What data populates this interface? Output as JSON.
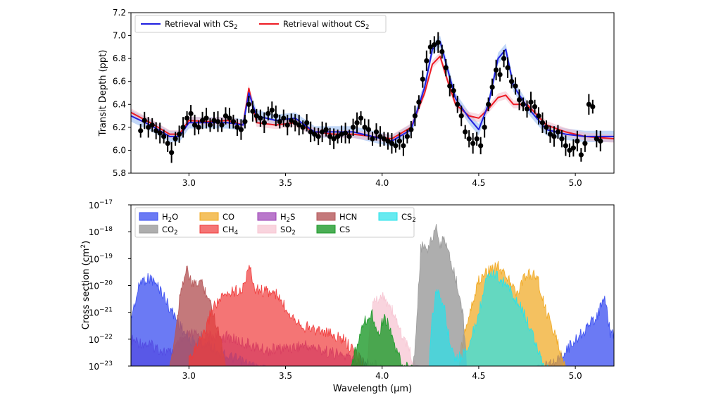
{
  "colors": {
    "with_cs2": "#1f1fe0",
    "without_cs2": "#ee1c24",
    "band_with": "#8fb7f0",
    "band_without": "#f2b8c6",
    "data_points": "#000000",
    "H2O": "#3a4ef0",
    "CO2": "#9a9a9a",
    "H2S": "#9b3fb5",
    "SO2": "#f7c6d3",
    "CO": "#f0a71c",
    "CH4": "#f03a3a",
    "HCN": "#b5585a",
    "CS": "#1e9a2a",
    "CS2": "#27e1ea"
  },
  "chart_data": [
    {
      "type": "line",
      "title": "",
      "xlabel": "",
      "ylabel": "Transit Depth (ppt)",
      "xlim": [
        2.7,
        5.2
      ],
      "ylim": [
        5.8,
        7.2
      ],
      "xticks": [
        "3.0",
        "3.5",
        "4.0",
        "4.5",
        "5.0"
      ],
      "yticks": [
        "5.8",
        "6.0",
        "6.2",
        "6.4",
        "6.6",
        "6.8",
        "7.0",
        "7.2"
      ],
      "legend_position": "top-left",
      "legend": [
        "Retrieval with CS2",
        "Retrieval without CS2"
      ],
      "series": [
        {
          "name": "Retrieval with CS2",
          "x": [
            2.7,
            2.8,
            2.9,
            2.95,
            3.0,
            3.1,
            3.2,
            3.28,
            3.31,
            3.35,
            3.45,
            3.55,
            3.65,
            3.75,
            3.85,
            3.95,
            4.05,
            4.15,
            4.22,
            4.26,
            4.3,
            4.34,
            4.38,
            4.45,
            4.5,
            4.55,
            4.6,
            4.64,
            4.68,
            4.75,
            4.85,
            4.95,
            5.05,
            5.2
          ],
          "y": [
            6.3,
            6.22,
            6.12,
            6.12,
            6.24,
            6.24,
            6.24,
            6.22,
            6.5,
            6.3,
            6.26,
            6.28,
            6.16,
            6.16,
            6.16,
            6.12,
            6.08,
            6.18,
            6.55,
            6.88,
            6.95,
            6.7,
            6.45,
            6.28,
            6.18,
            6.4,
            6.8,
            6.88,
            6.56,
            6.38,
            6.18,
            6.14,
            6.12,
            6.12
          ]
        },
        {
          "name": "Retrieval without CS2",
          "x": [
            2.7,
            2.8,
            2.9,
            2.95,
            3.0,
            3.1,
            3.2,
            3.28,
            3.31,
            3.35,
            3.45,
            3.55,
            3.65,
            3.75,
            3.85,
            3.95,
            4.05,
            4.15,
            4.22,
            4.26,
            4.3,
            4.34,
            4.38,
            4.45,
            4.5,
            4.55,
            4.6,
            4.64,
            4.68,
            4.75,
            4.85,
            4.95,
            5.05,
            5.2
          ],
          "y": [
            6.33,
            6.24,
            6.14,
            6.14,
            6.26,
            6.25,
            6.26,
            6.22,
            6.54,
            6.24,
            6.22,
            6.24,
            6.16,
            6.14,
            6.14,
            6.12,
            6.1,
            6.2,
            6.5,
            6.75,
            6.82,
            6.6,
            6.4,
            6.3,
            6.28,
            6.36,
            6.46,
            6.48,
            6.4,
            6.4,
            6.22,
            6.16,
            6.12,
            6.1
          ]
        }
      ],
      "observed": {
        "x": [
          2.75,
          2.77,
          2.79,
          2.81,
          2.83,
          2.85,
          2.87,
          2.89,
          2.91,
          2.93,
          2.95,
          2.97,
          2.99,
          3.01,
          3.03,
          3.05,
          3.07,
          3.09,
          3.11,
          3.13,
          3.15,
          3.17,
          3.19,
          3.21,
          3.23,
          3.25,
          3.27,
          3.29,
          3.31,
          3.33,
          3.35,
          3.37,
          3.39,
          3.41,
          3.43,
          3.45,
          3.47,
          3.49,
          3.51,
          3.53,
          3.55,
          3.57,
          3.59,
          3.61,
          3.63,
          3.65,
          3.67,
          3.69,
          3.71,
          3.73,
          3.75,
          3.77,
          3.79,
          3.81,
          3.83,
          3.85,
          3.87,
          3.89,
          3.91,
          3.93,
          3.95,
          3.97,
          3.99,
          4.01,
          4.03,
          4.05,
          4.07,
          4.09,
          4.11,
          4.13,
          4.15,
          4.17,
          4.19,
          4.21,
          4.23,
          4.25,
          4.27,
          4.29,
          4.31,
          4.33,
          4.35,
          4.37,
          4.39,
          4.41,
          4.43,
          4.45,
          4.47,
          4.49,
          4.51,
          4.53,
          4.55,
          4.57,
          4.59,
          4.61,
          4.63,
          4.65,
          4.67,
          4.69,
          4.71,
          4.73,
          4.75,
          4.77,
          4.79,
          4.81,
          4.83,
          4.85,
          4.87,
          4.89,
          4.91,
          4.93,
          4.95,
          4.97,
          4.99,
          5.01,
          5.03,
          5.05,
          5.07,
          5.09,
          5.11,
          5.13
        ],
        "y": [
          6.17,
          6.26,
          6.2,
          6.22,
          6.17,
          6.15,
          6.12,
          6.06,
          5.98,
          6.1,
          6.14,
          6.2,
          6.28,
          6.32,
          6.22,
          6.2,
          6.26,
          6.28,
          6.22,
          6.26,
          6.25,
          6.22,
          6.3,
          6.28,
          6.25,
          6.2,
          6.18,
          6.25,
          6.4,
          6.34,
          6.3,
          6.28,
          6.24,
          6.32,
          6.35,
          6.3,
          6.25,
          6.28,
          6.22,
          6.26,
          6.24,
          6.22,
          6.2,
          6.24,
          6.16,
          6.14,
          6.12,
          6.16,
          6.18,
          6.12,
          6.1,
          6.12,
          6.14,
          6.15,
          6.12,
          6.2,
          6.24,
          6.28,
          6.2,
          6.18,
          6.1,
          6.16,
          6.12,
          6.1,
          6.08,
          6.06,
          6.04,
          6.08,
          6.04,
          6.12,
          6.18,
          6.3,
          6.42,
          6.62,
          6.78,
          6.9,
          6.92,
          6.94,
          6.86,
          6.72,
          6.56,
          6.52,
          6.4,
          6.3,
          6.16,
          6.1,
          6.06,
          6.1,
          6.04,
          6.2,
          6.4,
          6.55,
          6.7,
          6.66,
          6.8,
          6.72,
          6.6,
          6.56,
          6.44,
          6.4,
          6.36,
          6.42,
          6.38,
          6.3,
          6.24,
          6.2,
          6.14,
          6.12,
          6.16,
          6.1,
          6.04,
          6.0,
          6.02,
          6.08,
          5.96,
          6.06,
          6.4,
          6.38,
          6.1,
          6.08
        ],
        "error": 0.06
      }
    },
    {
      "type": "area",
      "title": "",
      "xlabel": "Wavelength (µm)",
      "ylabel": "Cross section (cm²)",
      "yscale": "log",
      "xlim": [
        2.7,
        5.2
      ],
      "ylim_exponents": [
        -23,
        -17
      ],
      "xticks": [
        "3.0",
        "3.5",
        "4.0",
        "4.5",
        "5.0"
      ],
      "yticks": [
        {
          "base": "10",
          "exp": "−17"
        },
        {
          "base": "10",
          "exp": "−18"
        },
        {
          "base": "10",
          "exp": "−19"
        },
        {
          "base": "10",
          "exp": "−20"
        },
        {
          "base": "10",
          "exp": "−21"
        },
        {
          "base": "10",
          "exp": "−22"
        },
        {
          "base": "10",
          "exp": "−23"
        }
      ],
      "legend_position": "top-left",
      "legend": [
        {
          "key": "H2O",
          "label": "H",
          "sub": "2",
          "tail": "O"
        },
        {
          "key": "CO2",
          "label": "CO",
          "sub": "2",
          "tail": ""
        },
        {
          "key": "CO",
          "label": "CO",
          "sub": "",
          "tail": ""
        },
        {
          "key": "CH4",
          "label": "CH",
          "sub": "4",
          "tail": ""
        },
        {
          "key": "H2S",
          "label": "H",
          "sub": "2",
          "tail": "S"
        },
        {
          "key": "SO2",
          "label": "SO",
          "sub": "2",
          "tail": ""
        },
        {
          "key": "HCN",
          "label": "HCN",
          "sub": "",
          "tail": ""
        },
        {
          "key": "CS",
          "label": "CS",
          "sub": "",
          "tail": ""
        },
        {
          "key": "CS2",
          "label": "CS",
          "sub": "2",
          "tail": ""
        }
      ],
      "series": [
        {
          "name": "H2O",
          "x": [
            2.7,
            2.75,
            2.8,
            2.85,
            2.9,
            2.95,
            3.0,
            3.1,
            3.2,
            3.4,
            3.6,
            3.8,
            4.0,
            4.5,
            4.8,
            4.9,
            5.0,
            5.08,
            5.12,
            5.15,
            5.18,
            5.2
          ],
          "y": [
            -21.0,
            -19.6,
            -19.5,
            -19.9,
            -20.6,
            -21.2,
            -21.8,
            -22.0,
            -22.4,
            -23.0,
            -23.0,
            -23.0,
            -23.0,
            -23.0,
            -23.0,
            -22.6,
            -21.8,
            -21.2,
            -20.8,
            -20.2,
            -21.5,
            -21.6
          ]
        },
        {
          "name": "CO2",
          "x": [
            4.16,
            4.18,
            4.2,
            4.22,
            4.24,
            4.26,
            4.28,
            4.3,
            4.32,
            4.34,
            4.36,
            4.38,
            4.4,
            4.42,
            4.44
          ],
          "y": [
            -23.0,
            -21.0,
            -18.4,
            -18.2,
            -18.4,
            -18.0,
            -17.7,
            -18.3,
            -18.0,
            -18.6,
            -19.0,
            -19.5,
            -20.2,
            -21.0,
            -23.0
          ]
        },
        {
          "name": "CO",
          "x": [
            4.4,
            4.45,
            4.5,
            4.55,
            4.6,
            4.65,
            4.7,
            4.75,
            4.8,
            4.85,
            4.9,
            4.95
          ],
          "y": [
            -22.5,
            -20.8,
            -19.6,
            -19.2,
            -19.0,
            -19.5,
            -20.1,
            -19.3,
            -19.4,
            -20.8,
            -21.7,
            -23.0
          ]
        },
        {
          "name": "CH4",
          "x": [
            3.0,
            3.08,
            3.12,
            3.18,
            3.22,
            3.28,
            3.31,
            3.34,
            3.4,
            3.45,
            3.5,
            3.55,
            3.6,
            3.7,
            3.8,
            3.9
          ],
          "y": [
            -22.5,
            -21.6,
            -20.6,
            -20.2,
            -20.0,
            -19.9,
            -19.0,
            -19.9,
            -20.0,
            -20.1,
            -20.6,
            -21.0,
            -21.3,
            -21.5,
            -21.8,
            -22.6
          ]
        },
        {
          "name": "HCN",
          "x": [
            2.9,
            2.93,
            2.96,
            2.99,
            3.02,
            3.06,
            3.1,
            3.16,
            3.2
          ],
          "y": [
            -23.0,
            -21.5,
            -19.8,
            -19.2,
            -19.8,
            -19.6,
            -20.2,
            -21.6,
            -23.0
          ]
        },
        {
          "name": "H2S",
          "x": [
            2.7,
            2.8,
            2.9,
            3.0,
            3.2,
            3.4,
            3.6,
            3.8,
            4.0,
            4.2
          ],
          "y": [
            -21.8,
            -22.0,
            -22.3,
            -21.6,
            -21.7,
            -22.2,
            -22.0,
            -22.4,
            -22.8,
            -23.0
          ]
        },
        {
          "name": "SO2",
          "x": [
            3.92,
            3.94,
            3.96,
            3.98,
            4.0,
            4.02,
            4.04,
            4.06,
            4.08,
            4.1,
            4.14,
            4.18
          ],
          "y": [
            -23.0,
            -21.2,
            -20.2,
            -20.5,
            -20.0,
            -20.3,
            -20.6,
            -20.8,
            -21.2,
            -21.6,
            -22.2,
            -23.0
          ]
        },
        {
          "name": "CS",
          "x": [
            3.84,
            3.86,
            3.89,
            3.92,
            3.95,
            3.98,
            4.01,
            4.04,
            4.06,
            4.08,
            4.1,
            4.12,
            4.14,
            4.16
          ],
          "y": [
            -23.0,
            -22.2,
            -21.4,
            -21.0,
            -20.8,
            -21.6,
            -21.0,
            -21.3,
            -21.9,
            -22.4,
            -22.6,
            -22.8,
            -22.9,
            -23.0
          ]
        },
        {
          "name": "CS2",
          "x": [
            4.24,
            4.26,
            4.28,
            4.3,
            4.32,
            4.34,
            4.38,
            4.42,
            4.46,
            4.5,
            4.54,
            4.58,
            4.62,
            4.66,
            4.7,
            4.74,
            4.78,
            4.82,
            4.86
          ],
          "y": [
            -23.0,
            -21.0,
            -20.0,
            -20.2,
            -20.4,
            -21.5,
            -22.6,
            -22.3,
            -21.8,
            -20.8,
            -19.6,
            -19.3,
            -19.6,
            -19.9,
            -20.4,
            -20.9,
            -21.6,
            -22.5,
            -23.0
          ]
        }
      ]
    }
  ]
}
